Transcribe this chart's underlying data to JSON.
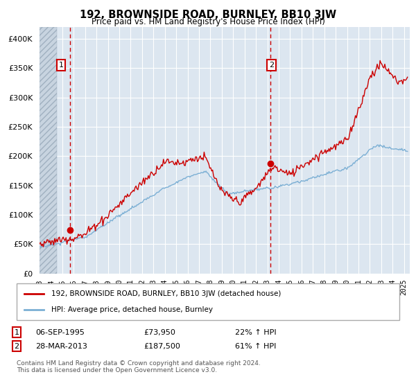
{
  "title": "192, BROWNSIDE ROAD, BURNLEY, BB10 3JW",
  "subtitle": "Price paid vs. HM Land Registry's House Price Index (HPI)",
  "hpi_color": "#7bafd4",
  "price_color": "#cc0000",
  "dashed_color": "#cc0000",
  "marker_color": "#cc0000",
  "plot_bg_color": "#dce6f0",
  "grid_color": "#ffffff",
  "hatch_color": "#c8d4e0",
  "ylim": [
    0,
    420000
  ],
  "yticks": [
    0,
    50000,
    100000,
    150000,
    200000,
    250000,
    300000,
    350000,
    400000
  ],
  "xlim_start": 1993.0,
  "xlim_end": 2025.5,
  "legend_entry1": "192, BROWNSIDE ROAD, BURNLEY, BB10 3JW (detached house)",
  "legend_entry2": "HPI: Average price, detached house, Burnley",
  "sale1_label": "1",
  "sale1_date": "06-SEP-1995",
  "sale1_price": "£73,950",
  "sale1_hpi": "22% ↑ HPI",
  "sale1_year": 1995.69,
  "sale1_value": 73950,
  "sale2_label": "2",
  "sale2_date": "28-MAR-2013",
  "sale2_price": "£187,500",
  "sale2_hpi": "61% ↑ HPI",
  "sale2_year": 2013.24,
  "sale2_value": 187500,
  "footnote": "Contains HM Land Registry data © Crown copyright and database right 2024.\nThis data is licensed under the Open Government Licence v3.0."
}
